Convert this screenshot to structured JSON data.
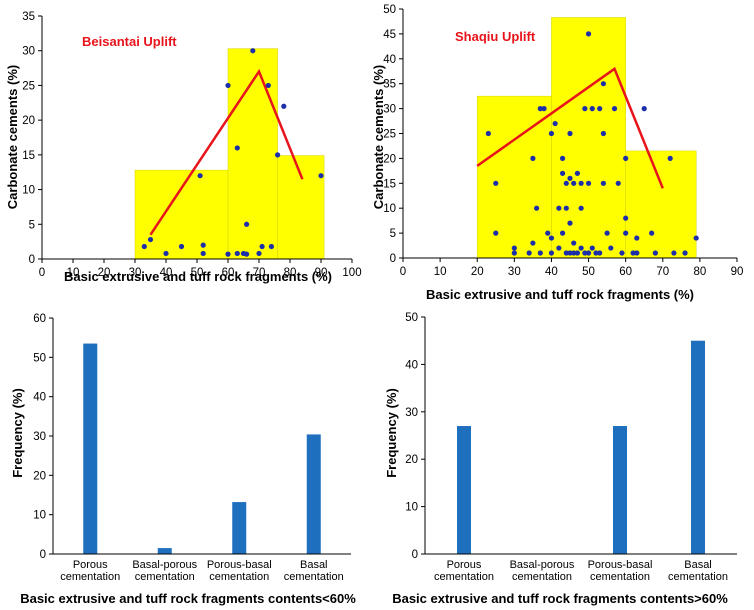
{
  "chart_data": [
    {
      "type": "scatter",
      "title": "Beisantai Uplift",
      "xlabel": "Basic extrusive and tuff rock fragments (%)",
      "ylabel": "Carbonate cements (%)",
      "xlim": [
        0,
        100
      ],
      "ylim": [
        0,
        35
      ],
      "xticks": [
        "0",
        "10",
        "20",
        "30",
        "40",
        "50",
        "60",
        "70",
        "80",
        "90",
        "100"
      ],
      "yticks": [
        "0",
        "5",
        "10",
        "15",
        "20",
        "25",
        "30",
        "35"
      ],
      "histogram_bins": [
        {
          "x0": 30,
          "x1": 60,
          "value": 12.8
        },
        {
          "x0": 60,
          "x1": 76,
          "value": 30.3
        },
        {
          "x0": 76,
          "x1": 91,
          "value": 14.9
        }
      ],
      "trend_line": [
        [
          35,
          3.5
        ],
        [
          70,
          27
        ],
        [
          84,
          11.5
        ]
      ],
      "points": [
        [
          33,
          1.8
        ],
        [
          35,
          2.8
        ],
        [
          40,
          0.8
        ],
        [
          45,
          1.8
        ],
        [
          51,
          12
        ],
        [
          52,
          2
        ],
        [
          52,
          0.8
        ],
        [
          60,
          25
        ],
        [
          60,
          0.7
        ],
        [
          63,
          16
        ],
        [
          63,
          0.8
        ],
        [
          65,
          0.8
        ],
        [
          66,
          5
        ],
        [
          66,
          0.7
        ],
        [
          68,
          30
        ],
        [
          70,
          0.8
        ],
        [
          71,
          1.8
        ],
        [
          73,
          25
        ],
        [
          74,
          1.8
        ],
        [
          76,
          15
        ],
        [
          78,
          22
        ],
        [
          90,
          12
        ]
      ]
    },
    {
      "type": "scatter",
      "title": "Shaqiu Uplift",
      "xlabel": "Basic extrusive and tuff rock fragments (%)",
      "ylabel": "Carbonate cements (%)",
      "xlim": [
        0,
        90
      ],
      "ylim": [
        0,
        50
      ],
      "xticks": [
        "0",
        "10",
        "20",
        "30",
        "40",
        "50",
        "60",
        "70",
        "80",
        "90"
      ],
      "yticks": [
        "0",
        "5",
        "10",
        "15",
        "20",
        "25",
        "30",
        "35",
        "40",
        "45",
        "50"
      ],
      "histogram_bins": [
        {
          "x0": 20,
          "x1": 40,
          "value": 32.5
        },
        {
          "x0": 40,
          "x1": 60,
          "value": 48.3
        },
        {
          "x0": 60,
          "x1": 79,
          "value": 21.5
        }
      ],
      "trend_line": [
        [
          20,
          18.5
        ],
        [
          57,
          38
        ],
        [
          70,
          14
        ]
      ],
      "points": [
        [
          23,
          25
        ],
        [
          25,
          15
        ],
        [
          25,
          5
        ],
        [
          30,
          2
        ],
        [
          30,
          1
        ],
        [
          34,
          1
        ],
        [
          35,
          3
        ],
        [
          35,
          20
        ],
        [
          36,
          10
        ],
        [
          37,
          1
        ],
        [
          37,
          30
        ],
        [
          38,
          30
        ],
        [
          39,
          5
        ],
        [
          40,
          25
        ],
        [
          40,
          4
        ],
        [
          40,
          1
        ],
        [
          41,
          27
        ],
        [
          42,
          2
        ],
        [
          42,
          10
        ],
        [
          43,
          20
        ],
        [
          43,
          17
        ],
        [
          43,
          5
        ],
        [
          44,
          15
        ],
        [
          44,
          10
        ],
        [
          44,
          1
        ],
        [
          45,
          25
        ],
        [
          45,
          16
        ],
        [
          45,
          1
        ],
        [
          45,
          7
        ],
        [
          46,
          1
        ],
        [
          46,
          3
        ],
        [
          46,
          15
        ],
        [
          47,
          1
        ],
        [
          47,
          17
        ],
        [
          48,
          15
        ],
        [
          48,
          2
        ],
        [
          48,
          10
        ],
        [
          49,
          30
        ],
        [
          49,
          1
        ],
        [
          50,
          45
        ],
        [
          50,
          1
        ],
        [
          50,
          15
        ],
        [
          51,
          30
        ],
        [
          51,
          2
        ],
        [
          52,
          1
        ],
        [
          53,
          30
        ],
        [
          53,
          1
        ],
        [
          54,
          35
        ],
        [
          54,
          25
        ],
        [
          54,
          15
        ],
        [
          55,
          5
        ],
        [
          56,
          2
        ],
        [
          57,
          30
        ],
        [
          58,
          15
        ],
        [
          59,
          1
        ],
        [
          60,
          20
        ],
        [
          60,
          8
        ],
        [
          60,
          5
        ],
        [
          62,
          1
        ],
        [
          63,
          4
        ],
        [
          63,
          1
        ],
        [
          65,
          30
        ],
        [
          67,
          5
        ],
        [
          68,
          1
        ],
        [
          72,
          20
        ],
        [
          73,
          1
        ],
        [
          76,
          1
        ],
        [
          79,
          4
        ]
      ]
    },
    {
      "type": "bar",
      "xlabel": "Basic extrusive and tuff rock fragments contents<60%",
      "ylabel": "Frequency (%)",
      "ylim": [
        0,
        60
      ],
      "yticks": [
        "0",
        "10",
        "20",
        "30",
        "40",
        "50",
        "60"
      ],
      "categories": [
        [
          "Porous",
          "cementation"
        ],
        [
          "Basal-porous",
          "cementation"
        ],
        [
          "Porous-basal",
          "cementation"
        ],
        [
          "Basal",
          "cementation"
        ]
      ],
      "values": [
        53.5,
        1.5,
        13.2,
        30.4
      ]
    },
    {
      "type": "bar",
      "xlabel": "Basic extrusive and tuff rock fragments contents>60%",
      "ylabel": "Frequency (%)",
      "ylim": [
        0,
        50
      ],
      "yticks": [
        "0",
        "10",
        "20",
        "30",
        "40",
        "50"
      ],
      "categories": [
        [
          "Porous",
          "cementation"
        ],
        [
          "Basal-porous",
          "cementation"
        ],
        [
          "Porous-basal",
          "cementation"
        ],
        [
          "Basal",
          "cementation"
        ]
      ],
      "values": [
        27,
        0,
        27,
        45
      ]
    }
  ],
  "colors": {
    "histogram": "#ffff00",
    "trend": "#e8141b",
    "points": "#1c2fa8",
    "bars": "#1f6fbf"
  }
}
